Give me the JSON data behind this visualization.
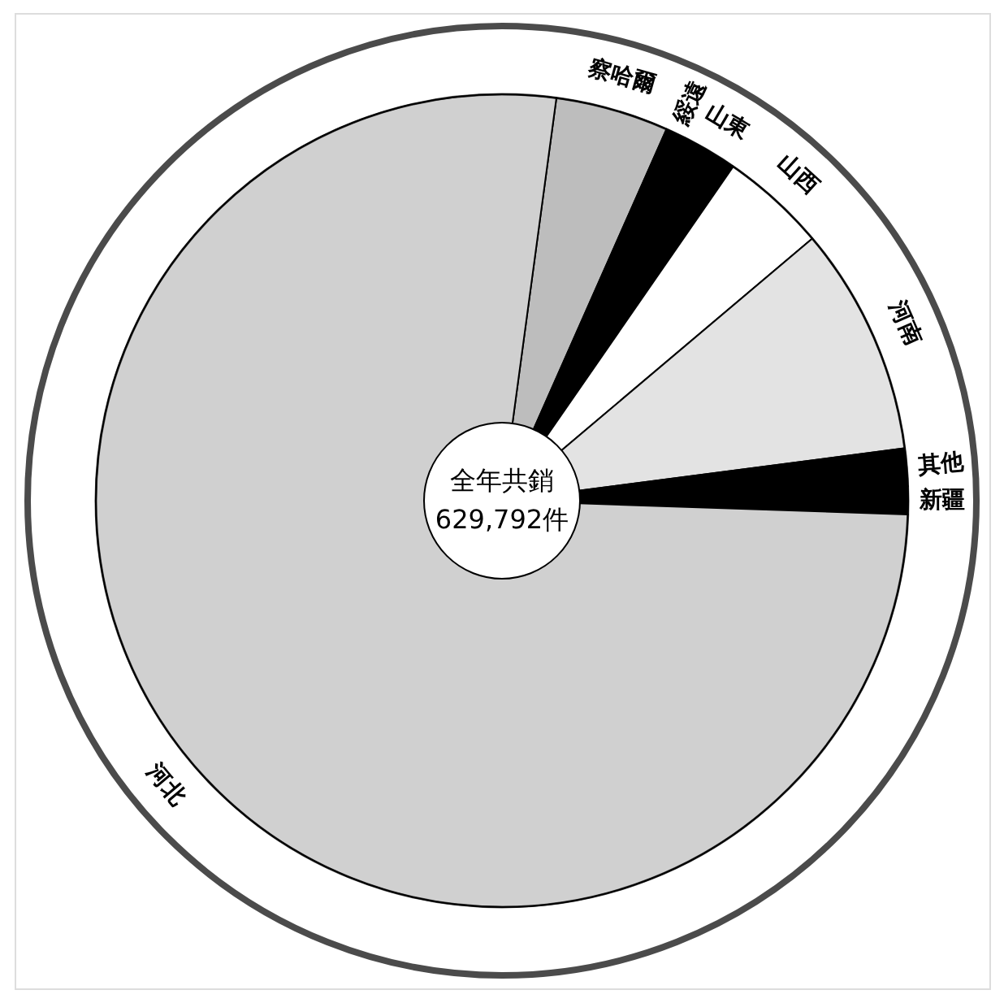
{
  "chart_data": {
    "type": "pie",
    "categories": [
      "察哈爾",
      "綏遠",
      "山東",
      "山西",
      "河南",
      "其他",
      "新疆",
      "河北"
    ],
    "values": [
      4.5,
      0.8,
      2.2,
      4.2,
      9.1,
      1.5,
      1.1,
      76.6
    ],
    "colors": [
      "#bdbdbd",
      "#000000",
      "#000000",
      "#ffffff",
      "#e3e3e3",
      "#000000",
      "#000000",
      "#d0d0d0"
    ],
    "annotations": [
      "全年共銷",
      "629,792件"
    ]
  }
}
